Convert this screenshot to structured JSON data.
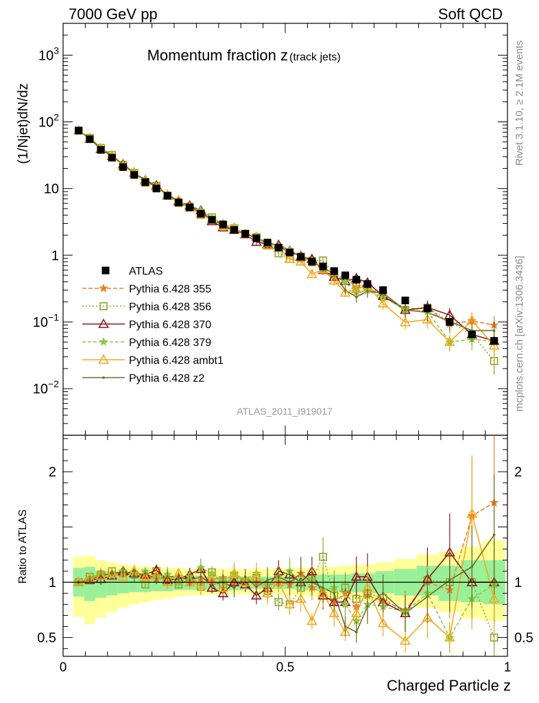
{
  "header": {
    "left": "7000 GeV pp",
    "right": "Soft QCD"
  },
  "side_labels": {
    "rivet": "Rivet 3.1.10, ≥ 2.1M events",
    "source": "mcplots.cern.ch [arXiv:1306.3436]"
  },
  "chart_data": {
    "type": "line",
    "title_main": "Momentum fraction z",
    "title_sub": "(track jets)",
    "analysis_id": "ATLAS_2011_I919017",
    "xlabel": "Charged Particle z",
    "ylabel": "(1/Njet)dN/dz",
    "ratio_ylabel": "Ratio to ATLAS",
    "xlim": [
      0,
      1
    ],
    "ylim": [
      0.002,
      3000
    ],
    "yscale": "log",
    "ratio_ylim": [
      0.33,
      2.33
    ],
    "x_ticks": [
      "0",
      "0.5",
      "1"
    ],
    "y_ticks": [
      "10^-2",
      "10^-1",
      "1",
      "10",
      "10^2",
      "10^3"
    ],
    "ratio_ticks": [
      "0.5",
      "1",
      "2"
    ],
    "legend_position": "middle-left",
    "x": [
      0.035,
      0.06,
      0.085,
      0.11,
      0.135,
      0.16,
      0.185,
      0.21,
      0.235,
      0.26,
      0.285,
      0.31,
      0.335,
      0.36,
      0.385,
      0.41,
      0.435,
      0.46,
      0.485,
      0.51,
      0.535,
      0.56,
      0.585,
      0.61,
      0.635,
      0.66,
      0.685,
      0.72,
      0.77,
      0.82,
      0.87,
      0.92,
      0.97
    ],
    "data": {
      "name": "ATLAS",
      "values": [
        74,
        55,
        38,
        29,
        21,
        16,
        12.5,
        10,
        7.8,
        6.2,
        5.2,
        4.2,
        3.4,
        2.9,
        2.4,
        2.1,
        1.8,
        1.55,
        1.3,
        1.1,
        0.95,
        0.8,
        0.68,
        0.58,
        0.5,
        0.43,
        0.37,
        0.3,
        0.21,
        0.16,
        0.1,
        0.065,
        0.052
      ],
      "band_stat_lo": [
        0.87,
        0.83,
        0.86,
        0.88,
        0.9,
        0.91,
        0.91,
        0.92,
        0.92,
        0.93,
        0.93,
        0.93,
        0.93,
        0.93,
        0.93,
        0.93,
        0.94,
        0.94,
        0.94,
        0.94,
        0.93,
        0.93,
        0.92,
        0.92,
        0.91,
        0.91,
        0.9,
        0.9,
        0.88,
        0.88,
        0.83,
        0.82,
        0.8
      ],
      "band_stat_hi": [
        1.13,
        1.14,
        1.1,
        1.1,
        1.08,
        1.07,
        1.07,
        1.06,
        1.06,
        1.06,
        1.06,
        1.06,
        1.05,
        1.05,
        1.05,
        1.05,
        1.05,
        1.05,
        1.05,
        1.06,
        1.06,
        1.06,
        1.07,
        1.07,
        1.07,
        1.08,
        1.08,
        1.1,
        1.12,
        1.15,
        1.15,
        1.2,
        1.2
      ],
      "band_tot_lo": [
        0.69,
        0.62,
        0.68,
        0.73,
        0.77,
        0.8,
        0.82,
        0.84,
        0.85,
        0.87,
        0.88,
        0.88,
        0.89,
        0.89,
        0.89,
        0.89,
        0.89,
        0.89,
        0.89,
        0.88,
        0.88,
        0.87,
        0.86,
        0.86,
        0.85,
        0.84,
        0.83,
        0.82,
        0.79,
        0.77,
        0.73,
        0.67,
        0.65
      ],
      "band_tot_hi": [
        1.23,
        1.24,
        1.2,
        1.18,
        1.16,
        1.15,
        1.14,
        1.14,
        1.13,
        1.13,
        1.12,
        1.12,
        1.12,
        1.12,
        1.12,
        1.12,
        1.12,
        1.12,
        1.12,
        1.13,
        1.13,
        1.13,
        1.14,
        1.14,
        1.15,
        1.16,
        1.16,
        1.18,
        1.21,
        1.25,
        1.28,
        1.32,
        1.38
      ]
    },
    "series": [
      {
        "name": "Pythia 6.428 355",
        "color": "#f07f2a",
        "dash": "6,3",
        "marker": "star",
        "ratio": [
          1.0,
          1.03,
          1.07,
          1.05,
          1.09,
          1.07,
          1.05,
          1.03,
          1.02,
          1.0,
          1.0,
          1.03,
          1.02,
          1.04,
          1.0,
          1.02,
          1.0,
          0.97,
          1.0,
          0.98,
          1.08,
          0.95,
          0.9,
          0.82,
          0.9,
          0.78,
          0.88,
          0.83,
          0.75,
          1.0,
          0.93,
          1.6,
          1.72
        ]
      },
      {
        "name": "Pythia 6.428 356",
        "color": "#8da52a",
        "dash": "2,3",
        "marker": "square",
        "ratio": [
          1.0,
          1.05,
          1.07,
          1.1,
          1.08,
          1.07,
          0.98,
          1.1,
          1.0,
          0.98,
          1.03,
          0.96,
          1.09,
          0.98,
          1.06,
          1.0,
          1.04,
          0.92,
          0.82,
          0.8,
          0.95,
          1.03,
          1.23,
          0.88,
          0.95,
          0.85,
          0.9,
          0.86,
          0.72,
          1.02,
          1.0,
          1.0,
          0.5
        ]
      },
      {
        "name": "Pythia 6.428 370",
        "color": "#8b1a1a",
        "dash": "",
        "marker": "triangle",
        "ratio": [
          1.0,
          1.02,
          1.03,
          1.06,
          1.1,
          1.08,
          1.07,
          1.11,
          1.02,
          1.03,
          1.07,
          1.12,
          0.95,
          0.9,
          1.0,
          0.98,
          0.88,
          0.95,
          1.1,
          1.07,
          1.0,
          1.1,
          0.88,
          0.82,
          0.82,
          1.05,
          1.05,
          0.82,
          0.72,
          1.03,
          1.27,
          1.0,
          1.0
        ]
      },
      {
        "name": "Pythia 6.428 379",
        "color": "#8ec63f",
        "dash": "5,3",
        "marker": "star",
        "ratio": [
          1.0,
          1.03,
          1.08,
          1.06,
          1.1,
          1.08,
          1.1,
          1.05,
          1.07,
          1.0,
          1.05,
          1.13,
          1.08,
          1.02,
          1.07,
          1.03,
          1.08,
          0.98,
          1.05,
          1.1,
          1.0,
          1.03,
          0.93,
          0.95,
          0.8,
          0.65,
          0.8,
          0.78,
          0.73,
          0.9,
          0.5,
          0.85,
          0.98
        ]
      },
      {
        "name": "Pythia 6.428 ambt1",
        "color": "#f4a81d",
        "dash": "",
        "marker": "triangle",
        "ratio": [
          1.0,
          1.04,
          1.06,
          1.08,
          1.05,
          1.1,
          1.04,
          1.06,
          1.0,
          1.08,
          1.0,
          0.98,
          1.02,
          0.95,
          1.08,
          1.0,
          1.05,
          0.9,
          1.0,
          0.8,
          0.85,
          0.65,
          0.9,
          0.72,
          0.55,
          0.72,
          0.95,
          0.63,
          0.47,
          0.68,
          0.5,
          1.62,
          0.85
        ]
      },
      {
        "name": "Pythia 6.428 z2",
        "color": "#6e6e23",
        "dash": "",
        "marker": "dot",
        "ratio": [
          1.0,
          1.02,
          1.06,
          1.08,
          1.09,
          1.06,
          1.08,
          1.03,
          1.05,
          1.05,
          1.02,
          1.05,
          0.98,
          1.0,
          0.95,
          1.05,
          0.96,
          1.02,
          1.05,
          1.0,
          1.08,
          1.0,
          0.95,
          0.9,
          0.6,
          0.55,
          0.78,
          0.9,
          0.72,
          0.87,
          1.02,
          1.14,
          1.43
        ]
      }
    ]
  }
}
